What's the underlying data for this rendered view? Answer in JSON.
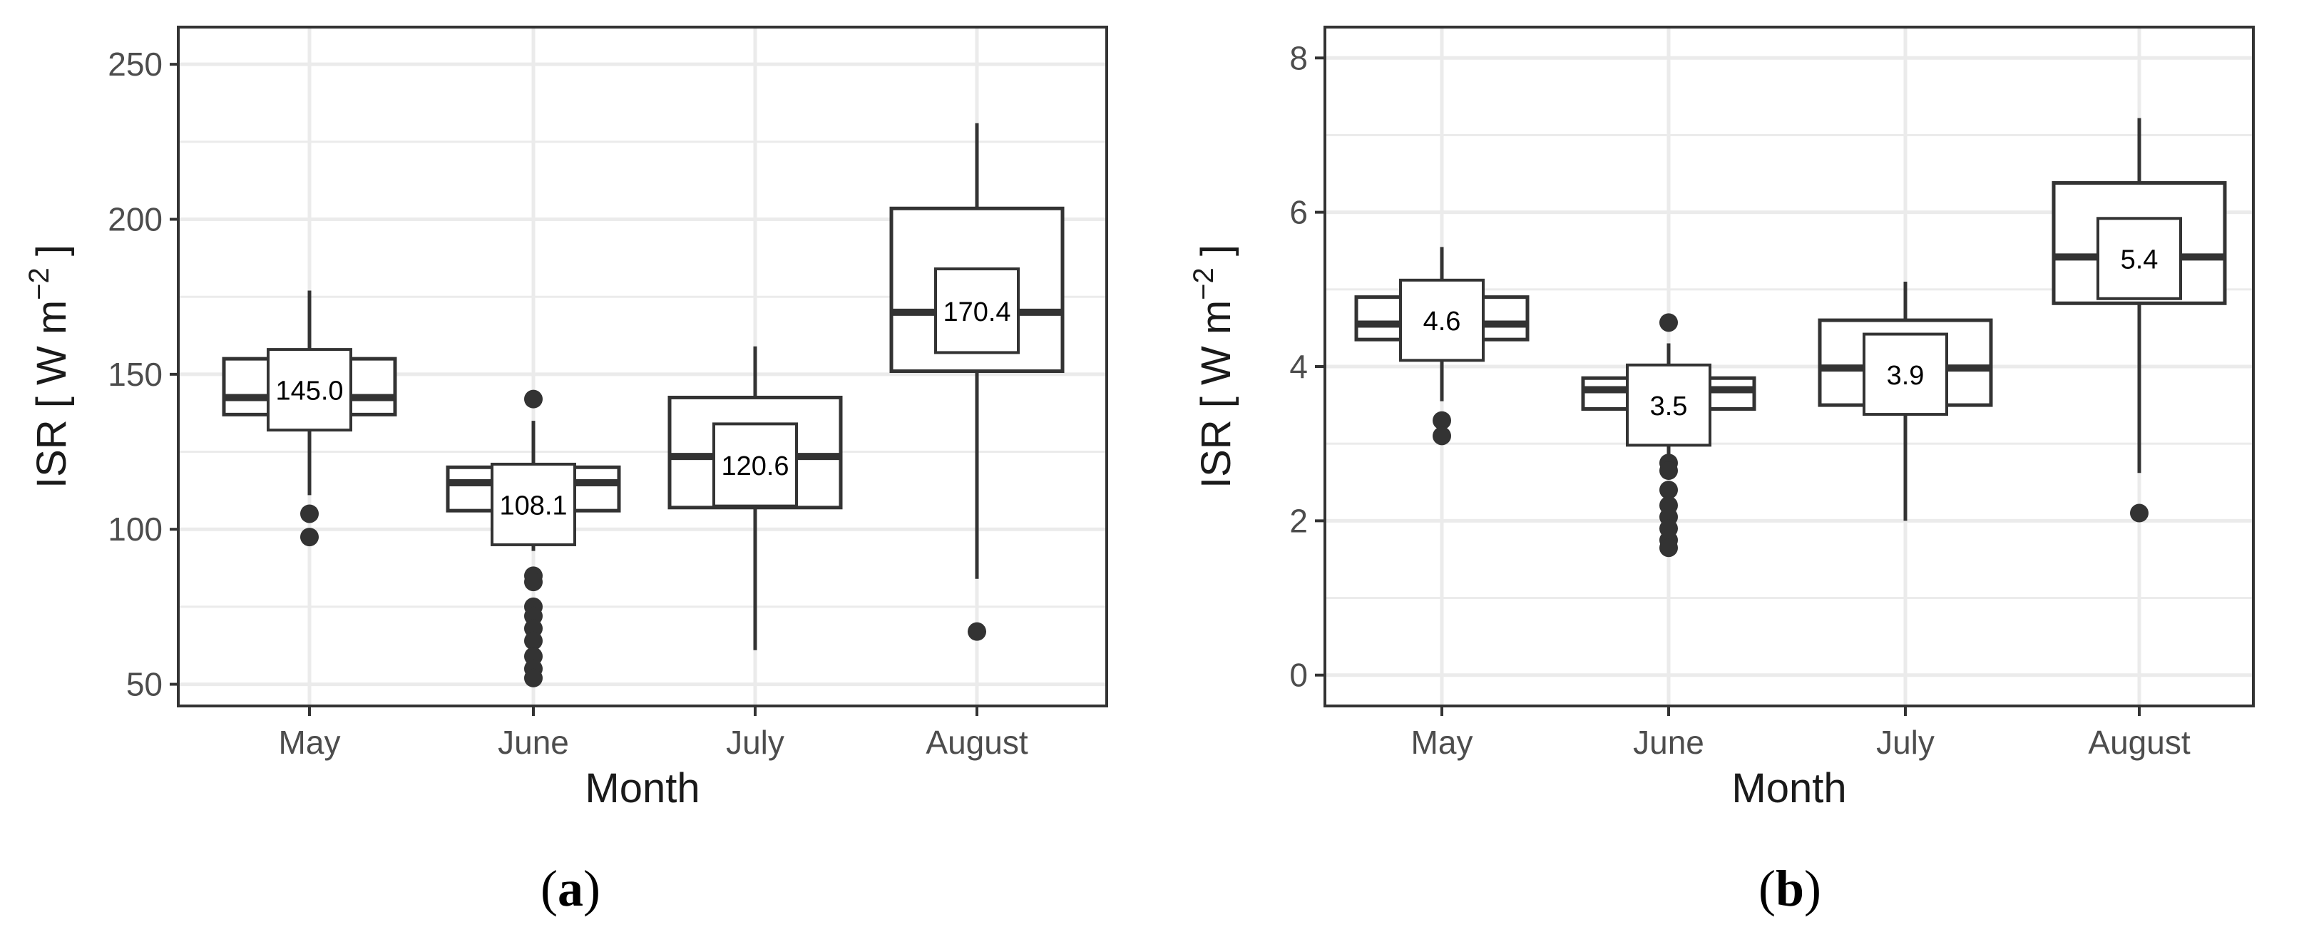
{
  "chart_data": [
    {
      "type": "box",
      "panel_label": "a",
      "xlabel": "Month",
      "ylabel": "ISR [ W m",
      "ylabel_sup": "−2",
      "ylabel_close": " ]",
      "ylim": [
        43,
        262
      ],
      "yticks": [
        50,
        100,
        150,
        200,
        250
      ],
      "grid": true,
      "categories": [
        "May",
        "June",
        "July",
        "August"
      ],
      "boxes": [
        {
          "category": "May",
          "whisker_low": 111,
          "q1": 137,
          "median": 142.5,
          "q3": 155,
          "whisker_high": 177,
          "outliers": [
            105,
            97.5
          ]
        },
        {
          "category": "June",
          "whisker_low": 93,
          "q1": 106,
          "median": 115,
          "q3": 120,
          "whisker_high": 135,
          "outliers": [
            142,
            85,
            83,
            75,
            72,
            68,
            64,
            59,
            55,
            52
          ]
        },
        {
          "category": "July",
          "whisker_low": 61,
          "q1": 107,
          "median": 123.5,
          "q3": 142.5,
          "whisker_high": 159,
          "outliers": []
        },
        {
          "category": "August",
          "whisker_low": 84,
          "q1": 151,
          "median": 170,
          "q3": 203.5,
          "whisker_high": 231,
          "outliers": [
            67
          ]
        }
      ],
      "mean_labels": [
        {
          "category": "May",
          "label": "145.0",
          "value": 145.0,
          "box_low": 132,
          "box_high": 158
        },
        {
          "category": "June",
          "label": "108.1",
          "value": 108.1,
          "box_low": 95,
          "box_high": 121
        },
        {
          "category": "July",
          "label": "120.6",
          "value": 120.6,
          "box_low": 107.5,
          "box_high": 134
        },
        {
          "category": "August",
          "label": "170.4",
          "value": 170.4,
          "box_low": 157,
          "box_high": 184
        }
      ]
    },
    {
      "type": "box",
      "panel_label": "b",
      "xlabel": "Month",
      "ylabel": "ISR [ W m",
      "ylabel_sup": "−2",
      "ylabel_close": " ]",
      "ylim": [
        -0.4,
        8.4
      ],
      "yticks": [
        0,
        2,
        4,
        6,
        8
      ],
      "grid": true,
      "categories": [
        "May",
        "June",
        "July",
        "August"
      ],
      "boxes": [
        {
          "category": "May",
          "whisker_low": 3.55,
          "q1": 4.35,
          "median": 4.55,
          "q3": 4.9,
          "whisker_high": 5.55,
          "outliers": [
            3.3,
            3.1
          ]
        },
        {
          "category": "June",
          "whisker_low": 2.85,
          "q1": 3.45,
          "median": 3.7,
          "q3": 3.85,
          "whisker_high": 4.3,
          "outliers": [
            4.57,
            2.75,
            2.65,
            2.4,
            2.2,
            2.05,
            1.9,
            1.75,
            1.65
          ]
        },
        {
          "category": "July",
          "whisker_low": 2.0,
          "q1": 3.5,
          "median": 3.98,
          "q3": 4.6,
          "whisker_high": 5.1,
          "outliers": []
        },
        {
          "category": "August",
          "whisker_low": 2.62,
          "q1": 4.82,
          "median": 5.42,
          "q3": 6.38,
          "whisker_high": 7.22,
          "outliers": [
            2.1
          ]
        }
      ],
      "mean_labels": [
        {
          "category": "May",
          "label": "4.6",
          "value": 4.6,
          "box_low": 4.08,
          "box_high": 5.12
        },
        {
          "category": "June",
          "label": "3.5",
          "value": 3.5,
          "box_low": 2.98,
          "box_high": 4.02
        },
        {
          "category": "July",
          "label": "3.9",
          "value": 3.9,
          "box_low": 3.38,
          "box_high": 4.42
        },
        {
          "category": "August",
          "label": "5.4",
          "value": 5.4,
          "box_low": 4.88,
          "box_high": 5.92
        }
      ]
    }
  ],
  "colors": {
    "box_stroke": "#333333",
    "grid": "#ebebeb",
    "panel_border": "#333333",
    "text": "#1a1a1a",
    "tick_text": "#4d4d4d",
    "outlier": "#333333"
  }
}
